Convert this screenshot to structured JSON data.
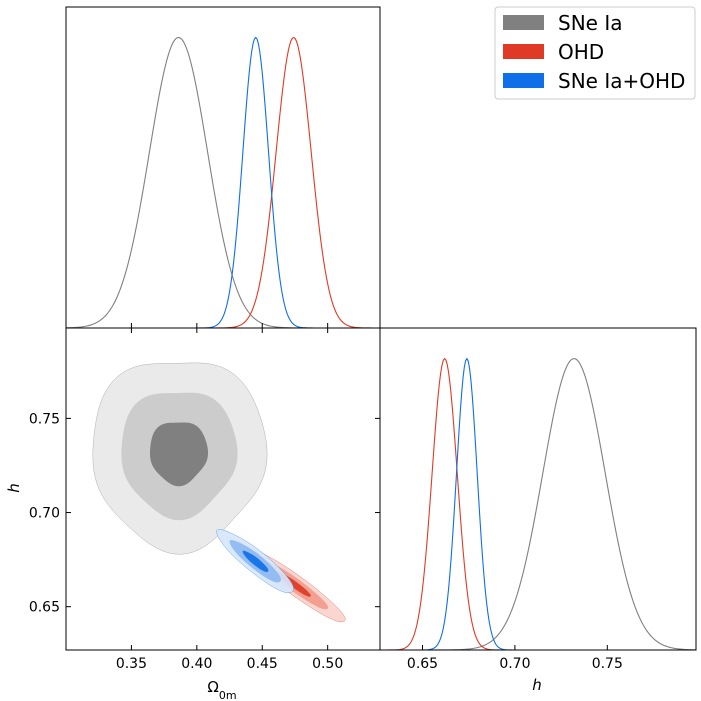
{
  "chart_data": {
    "type": "triangle",
    "title": "",
    "legend": {
      "placement": "top-right",
      "entries": [
        {
          "name": "SNe Ia",
          "color": "#808080"
        },
        {
          "name": "OHD",
          "color": "#e03a26"
        },
        {
          "name": "SNe Ia+OHD",
          "color": "#0f6fe8"
        }
      ]
    },
    "parameters": [
      {
        "key": "omega",
        "label": "Ω",
        "label_sub": "0m",
        "range": [
          0.3,
          0.54
        ],
        "ticks": [
          0.35,
          0.4,
          0.45,
          0.5
        ],
        "tick_labels": [
          "0.35",
          "0.40",
          "0.45",
          "0.50"
        ]
      },
      {
        "key": "h",
        "label": "h",
        "range": [
          0.627,
          0.798
        ],
        "ticks": [
          0.65,
          0.7,
          0.75
        ],
        "tick_labels": [
          "0.65",
          "0.70",
          "0.75"
        ]
      }
    ],
    "series": [
      {
        "name": "SNe Ia",
        "color": "#808080",
        "omega_mean": 0.386,
        "omega_sigma": 0.0222,
        "h_mean": 0.732,
        "h_sigma": 0.0169,
        "corr": 0.0,
        "contour_colors": [
          "#eaeaea",
          "#cccccc",
          "#808080"
        ]
      },
      {
        "name": "OHD",
        "color": "#e03a26",
        "omega_mean": 0.474,
        "omega_sigma": 0.0134,
        "h_mean": 0.662,
        "h_sigma": 0.0068,
        "corr": -0.95,
        "contour_colors": [
          "#f8d3cc",
          "#f29a8c",
          "#e03a26"
        ]
      },
      {
        "name": "SNe Ia+OHD",
        "color": "#0f6fe8",
        "omega_mean": 0.445,
        "omega_sigma": 0.0098,
        "h_mean": 0.674,
        "h_sigma": 0.0056,
        "corr": -0.9,
        "contour_colors": [
          "#d6e6fb",
          "#8db9f2",
          "#0f6fe8"
        ]
      }
    ]
  }
}
